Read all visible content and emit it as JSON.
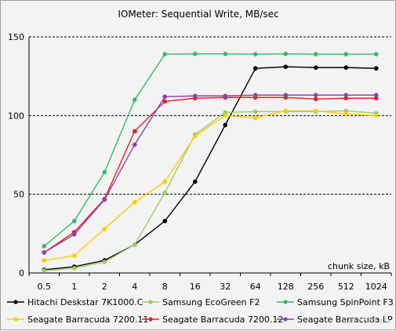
{
  "watermark": "zol.com.cn",
  "chart_data": {
    "type": "line",
    "title": "IOMeter: Sequential   Write, MB/sec",
    "xlabel": "chunk size, kB",
    "ylabel": "",
    "categories": [
      "0.5",
      "1",
      "2",
      "4",
      "8",
      "16",
      "32",
      "64",
      "128",
      "256",
      "512",
      "1024"
    ],
    "ylim": [
      0,
      150
    ],
    "yticks": [
      0,
      50,
      100,
      150
    ],
    "grid": "horizontal dashed at 50, 100, 150",
    "legend_position": "bottom",
    "series": [
      {
        "name": "Hitachi Deskstar 7K1000.C",
        "color": "#000000",
        "values": [
          2,
          4,
          8,
          18,
          33,
          58,
          94,
          130,
          131,
          130.5,
          130.5,
          130
        ]
      },
      {
        "name": "Samsung EcoGreen F2",
        "color": "#99cc66",
        "values": [
          1.5,
          3,
          7,
          18,
          51,
          88,
          102,
          102.5,
          102.5,
          102.5,
          103,
          101.5
        ]
      },
      {
        "name": "Samsung SpinPoint F3",
        "color": "#33bb66",
        "values": [
          17,
          33,
          64,
          110,
          139,
          139.2,
          139.2,
          139,
          139.2,
          139,
          139,
          139
        ]
      },
      {
        "name": "Seagate Barracuda 7200.11",
        "color": "#ffcc00",
        "values": [
          8,
          11,
          28,
          45,
          58,
          87,
          100,
          98.5,
          103,
          103,
          101,
          100
        ]
      },
      {
        "name": "Seagate Barracuda 7200.12",
        "color": "#ee1c24",
        "values": [
          13,
          26,
          47,
          90,
          109,
          111,
          111.5,
          111.5,
          111.5,
          110.5,
          111,
          111
        ]
      },
      {
        "name": "Seagate Barracuda LP",
        "color": "#8844aa",
        "values": [
          13,
          24.5,
          46.5,
          81.5,
          112,
          112.5,
          112.5,
          113,
          113,
          113,
          113,
          113
        ]
      }
    ]
  }
}
